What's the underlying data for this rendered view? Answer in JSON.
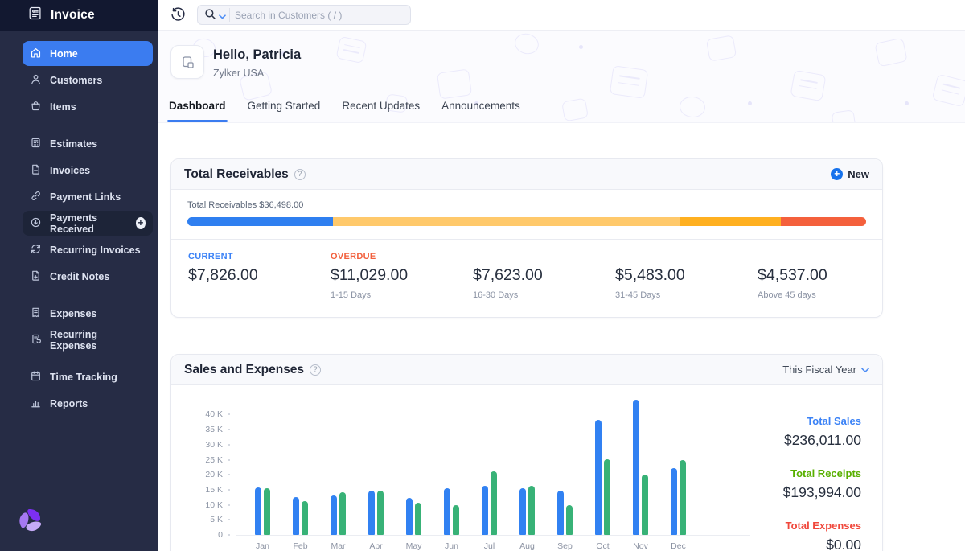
{
  "sidebar": {
    "app_title": "Invoice",
    "items": [
      {
        "label": "Home",
        "icon": "home",
        "group": 0,
        "active": true
      },
      {
        "label": "Customers",
        "icon": "user",
        "group": 0
      },
      {
        "label": "Items",
        "icon": "bag",
        "group": 0
      },
      {
        "label": "Estimates",
        "icon": "calculator",
        "group": 1
      },
      {
        "label": "Invoices",
        "icon": "document",
        "group": 1
      },
      {
        "label": "Payment Links",
        "icon": "link",
        "group": 1
      },
      {
        "label": "Payments Received",
        "icon": "payment-received",
        "group": 1,
        "highlighted": true,
        "trailing": "plus-circle"
      },
      {
        "label": "Recurring Invoices",
        "icon": "refresh",
        "group": 1
      },
      {
        "label": "Credit Notes",
        "icon": "credit-note",
        "group": 1
      },
      {
        "label": "Expenses",
        "icon": "receipt",
        "group": 2
      },
      {
        "label": "Recurring Expenses",
        "icon": "receipt-refresh",
        "group": 2
      },
      {
        "label": "Time Tracking",
        "icon": "calendar",
        "group": 3
      },
      {
        "label": "Reports",
        "icon": "bar-chart",
        "group": 3
      }
    ]
  },
  "topbar": {
    "search_placeholder": "Search in Customers ( / )"
  },
  "header": {
    "greeting": "Hello, Patricia",
    "org": "Zylker USA",
    "tabs": [
      {
        "label": "Dashboard",
        "active": true
      },
      {
        "label": "Getting Started"
      },
      {
        "label": "Recent Updates"
      },
      {
        "label": "Announcements"
      }
    ]
  },
  "receivables": {
    "title": "Total Receivables",
    "new_button": "New",
    "bar_label": "Total Receivables $36,498.00",
    "total": "$36,498.00",
    "segments": [
      {
        "name": "current",
        "color": "#2f7ff0",
        "pct": 21.4
      },
      {
        "name": "overdue-1-15",
        "color": "#ffc96b",
        "pct": 30.2
      },
      {
        "name": "overdue-16-30",
        "color": "#ffc96b",
        "pct": 20.9
      },
      {
        "name": "overdue-31-45",
        "color": "#ffb020",
        "pct": 15.0
      },
      {
        "name": "overdue-above-45",
        "color": "#f4603c",
        "pct": 12.5
      }
    ],
    "current": {
      "label": "CURRENT",
      "amount": "$7,826.00"
    },
    "overdue_label": "OVERDUE",
    "overdue_buckets": [
      {
        "amount": "$11,029.00",
        "range": "1-15 Days"
      },
      {
        "amount": "$7,623.00",
        "range": "16-30 Days"
      },
      {
        "amount": "$5,483.00",
        "range": "31-45 Days"
      },
      {
        "amount": "$4,537.00",
        "range": "Above 45 days"
      }
    ]
  },
  "sales_expenses": {
    "title": "Sales and Expenses",
    "period": "This Fiscal Year",
    "summary": [
      {
        "label": "Total Sales",
        "value": "$236,011.00",
        "color": "#3b82f6"
      },
      {
        "label": "Total Receipts",
        "value": "$193,994.00",
        "color": "#58b000"
      },
      {
        "label": "Total Expenses",
        "value": "$0.00",
        "color": "#f0483c"
      }
    ]
  },
  "chart_data": {
    "type": "bar",
    "title": "Sales and Expenses",
    "categories": [
      "Jan",
      "Feb",
      "Mar",
      "Apr",
      "May",
      "Jun",
      "Jul",
      "Aug",
      "Sep",
      "Oct",
      "Nov",
      "Dec"
    ],
    "category_year": "2023",
    "series": [
      {
        "name": "Sales",
        "color": "#3181f2",
        "values": [
          15700,
          12600,
          13200,
          14700,
          12400,
          15600,
          16300,
          15500,
          14600,
          38200,
          45000,
          22300
        ]
      },
      {
        "name": "Receipts",
        "color": "#38b277",
        "values": [
          15500,
          11200,
          14100,
          14600,
          10800,
          9800,
          21100,
          16400,
          10000,
          25100,
          20000,
          24800
        ]
      }
    ],
    "xlabel": "",
    "ylabel": "",
    "ylim": [
      0,
      45000
    ],
    "ytick_step": 5000,
    "yticks": [
      "0",
      "5 K",
      "10 K",
      "15 K",
      "20 K",
      "25 K",
      "30 K",
      "35 K",
      "40 K"
    ],
    "grid": false,
    "legend_position": "right",
    "legend_totals": {
      "total_sales": "$236,011.00",
      "total_receipts": "$193,994.00",
      "total_expenses": "$0.00"
    }
  },
  "colors": {
    "sidebar_bg": "#262c45",
    "sidebar_header_bg": "#121830",
    "active_item": "#3b7cf0",
    "accent_blue": "#3b82f6",
    "overdue_orange": "#f2603d",
    "receipts_green": "#58b000",
    "expenses_red": "#f0483c"
  }
}
